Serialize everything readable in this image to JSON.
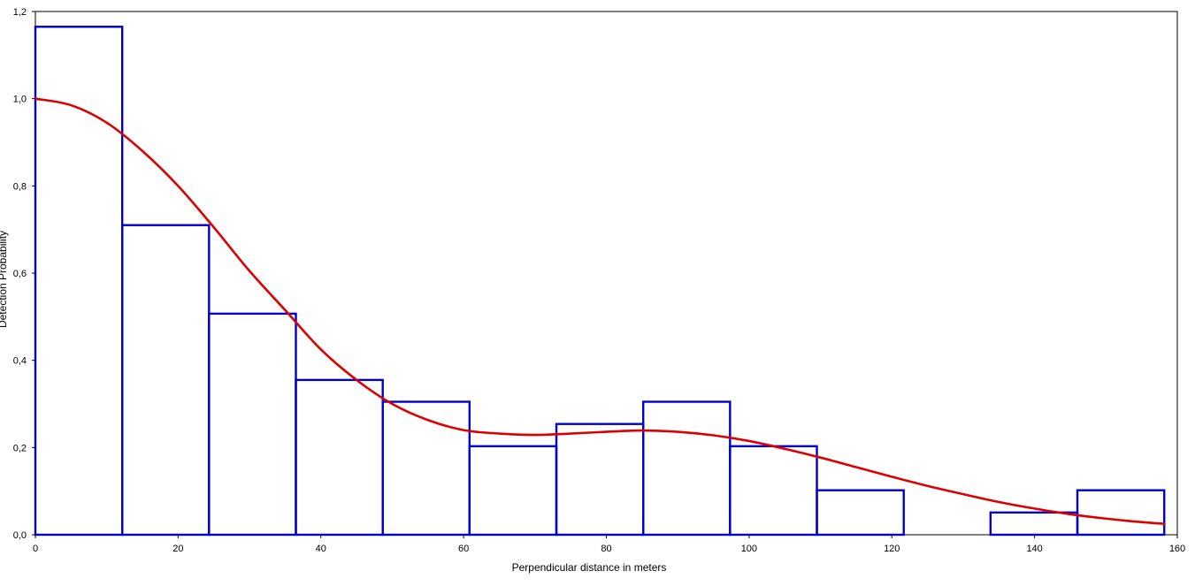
{
  "chart_data": {
    "type": "bar",
    "subtype": "histogram-with-fitted-curve",
    "xlabel": "Perpendicular distance in meters",
    "ylabel": "Detection Probability",
    "xlim": [
      0,
      160
    ],
    "ylim": [
      0,
      1.2
    ],
    "x_ticks": [
      "0",
      "20",
      "40",
      "60",
      "80",
      "100",
      "120",
      "140",
      "160"
    ],
    "y_ticks": [
      "0,0",
      "0,2",
      "0,4",
      "0,6",
      "0,8",
      "1,0",
      "1,2"
    ],
    "x_tick_values": [
      0,
      20,
      40,
      60,
      80,
      100,
      120,
      140,
      160
    ],
    "y_tick_values": [
      0,
      0.2,
      0.4,
      0.6,
      0.8,
      1.0,
      1.2
    ],
    "grid": false,
    "legend": "none",
    "bins": [
      {
        "x0": 0,
        "x1": 12.17,
        "value": 1.165
      },
      {
        "x0": 12.17,
        "x1": 24.33,
        "value": 0.71
      },
      {
        "x0": 24.33,
        "x1": 36.5,
        "value": 0.507
      },
      {
        "x0": 36.5,
        "x1": 48.67,
        "value": 0.355
      },
      {
        "x0": 48.67,
        "x1": 60.83,
        "value": 0.305
      },
      {
        "x0": 60.83,
        "x1": 73.0,
        "value": 0.203
      },
      {
        "x0": 73.0,
        "x1": 85.17,
        "value": 0.254
      },
      {
        "x0": 85.17,
        "x1": 97.33,
        "value": 0.305
      },
      {
        "x0": 97.33,
        "x1": 109.5,
        "value": 0.203
      },
      {
        "x0": 109.5,
        "x1": 121.67,
        "value": 0.102
      },
      {
        "x0": 121.67,
        "x1": 133.83,
        "value": 0.0
      },
      {
        "x0": 133.83,
        "x1": 146.0,
        "value": 0.051
      },
      {
        "x0": 146.0,
        "x1": 158.17,
        "value": 0.102
      }
    ],
    "curve": {
      "x": [
        0,
        5,
        10,
        15,
        20,
        25,
        30,
        35,
        40,
        45,
        50,
        55,
        60,
        65,
        70,
        75,
        80,
        85,
        90,
        95,
        100,
        105,
        110,
        115,
        120,
        125,
        130,
        135,
        140,
        145,
        150,
        155,
        158.2
      ],
      "y": [
        1.0,
        0.985,
        0.945,
        0.88,
        0.8,
        0.705,
        0.605,
        0.515,
        0.425,
        0.355,
        0.3,
        0.263,
        0.24,
        0.232,
        0.229,
        0.232,
        0.236,
        0.239,
        0.236,
        0.228,
        0.215,
        0.197,
        0.177,
        0.155,
        0.133,
        0.112,
        0.093,
        0.075,
        0.06,
        0.047,
        0.037,
        0.029,
        0.025
      ]
    },
    "colors": {
      "bars": "#0000cc",
      "curve": "#dd0000",
      "axis": "#000000",
      "background": "#ffffff"
    }
  }
}
